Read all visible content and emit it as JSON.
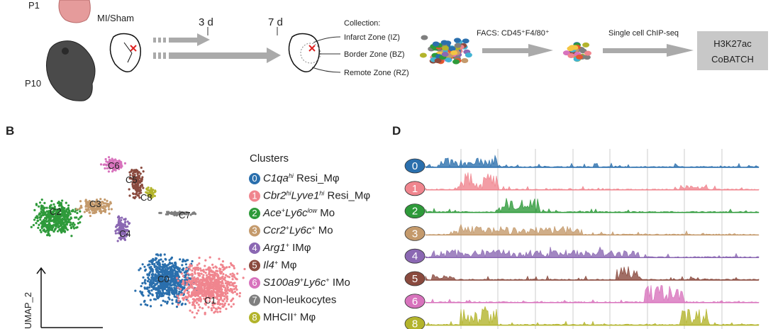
{
  "workflow": {
    "p1": "P1",
    "p10": "P10",
    "mi_sham": "MI/Sham",
    "day3": "3 d",
    "day7": "7 d",
    "collection": "Collection:",
    "zones": [
      "Infarct Zone (IZ)",
      "Border Zone (BZ)",
      "Remote Zone (RZ)"
    ],
    "facs": "FACS: CD45⁺F4/80⁺",
    "chip": "Single cell ChIP-seq",
    "result": [
      "H3K27ac",
      "CoBATCH"
    ]
  },
  "panel_b": {
    "letter": "B",
    "umap_labels": [
      "C6",
      "C5",
      "C8",
      "C2",
      "C3",
      "C7",
      "C4",
      "C0",
      "C1"
    ],
    "axis_label": "UMAP_2"
  },
  "legend": {
    "title": "Clusters",
    "items": [
      {
        "number": "0",
        "color": "#2a6fad",
        "parts": [
          {
            "text": "C1qa",
            "italic": true
          },
          {
            "text": "hi",
            "italic": true,
            "sup": true
          },
          {
            "text": " Resi_Mφ"
          }
        ]
      },
      {
        "number": "1",
        "color": "#f0858e",
        "parts": [
          {
            "text": "Cbr2",
            "italic": true
          },
          {
            "text": "hi",
            "italic": true,
            "sup": true
          },
          {
            "text": "Lyve1",
            "italic": true
          },
          {
            "text": "hi",
            "italic": true,
            "sup": true
          },
          {
            "text": " Resi_Mφ"
          }
        ]
      },
      {
        "number": "2",
        "color": "#2e9a3a",
        "parts": [
          {
            "text": "Ace",
            "italic": true
          },
          {
            "text": "+",
            "sup": true
          },
          {
            "text": "Ly6c",
            "italic": true
          },
          {
            "text": "low",
            "italic": true,
            "sup": true
          },
          {
            "text": " Mo"
          }
        ]
      },
      {
        "number": "3",
        "color": "#c49a6c",
        "parts": [
          {
            "text": "Ccr2",
            "italic": true
          },
          {
            "text": "+",
            "sup": true
          },
          {
            "text": "Ly6c",
            "italic": true
          },
          {
            "text": "+",
            "sup": true
          },
          {
            "text": " Mo"
          }
        ]
      },
      {
        "number": "4",
        "color": "#8b68b3",
        "parts": [
          {
            "text": "Arg1",
            "italic": true
          },
          {
            "text": "+",
            "sup": true
          },
          {
            "text": " IMφ"
          }
        ]
      },
      {
        "number": "5",
        "color": "#8a4a3e",
        "parts": [
          {
            "text": "Il4",
            "italic": true
          },
          {
            "text": "+",
            "sup": true
          },
          {
            "text": " Mφ"
          }
        ]
      },
      {
        "number": "6",
        "color": "#d873bd",
        "parts": [
          {
            "text": "S100a9",
            "italic": true
          },
          {
            "text": "+",
            "sup": true
          },
          {
            "text": "Ly6c",
            "italic": true
          },
          {
            "text": "+",
            "sup": true
          },
          {
            "text": " IMo"
          }
        ]
      },
      {
        "number": "7",
        "color": "#7f7f7f",
        "parts": [
          {
            "text": "Non-leukocytes"
          }
        ]
      },
      {
        "number": "8",
        "color": "#b3b42c",
        "parts": [
          {
            "text": "MHCII"
          },
          {
            "text": "+",
            "sup": true
          },
          {
            "text": " Mφ"
          }
        ]
      }
    ]
  },
  "panel_d": {
    "letter": "D",
    "tracks": [
      "0",
      "1",
      "2",
      "3",
      "4",
      "5",
      "6",
      "8"
    ]
  }
}
